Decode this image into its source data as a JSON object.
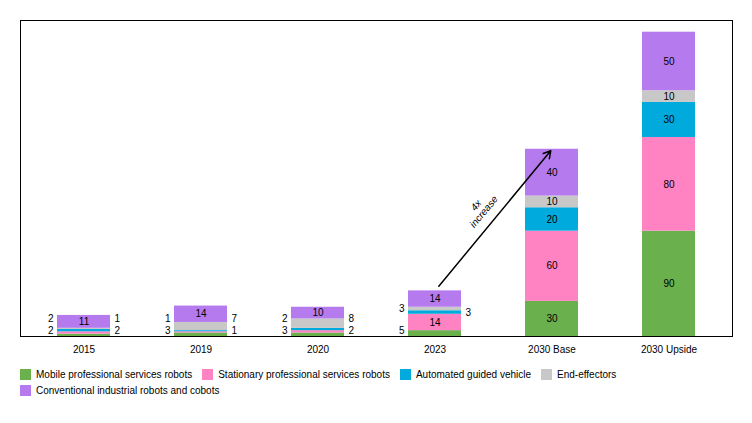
{
  "chart_data": {
    "type": "bar",
    "stacked": true,
    "categories": [
      "2015",
      "2019",
      "2020",
      "2023",
      "2030 Base",
      "2030 Upside"
    ],
    "series": [
      {
        "name": "Mobile professional services robots",
        "color": "#6ab04c",
        "values": [
          2,
          3,
          3,
          5,
          30,
          90
        ]
      },
      {
        "name": "Stationary professional services robots",
        "color": "#ff82c3",
        "values": [
          2,
          1,
          2,
          14,
          60,
          80
        ]
      },
      {
        "name": "Automated guided vehicle",
        "color": "#00aadd",
        "values": [
          2,
          1,
          2,
          3,
          20,
          30
        ]
      },
      {
        "name": "End-effectors",
        "color": "#c8c8c8",
        "values": [
          1,
          7,
          8,
          3,
          10,
          10
        ]
      },
      {
        "name": "Conventional industrial robots and cobots",
        "color": "#b57bee",
        "values": [
          11,
          14,
          10,
          14,
          40,
          50
        ]
      }
    ],
    "ylim": [
      0,
      270
    ],
    "tick_labels": "x",
    "data_labels": true,
    "legend": "bottom",
    "annotations": [
      "4x\nincrease"
    ]
  }
}
